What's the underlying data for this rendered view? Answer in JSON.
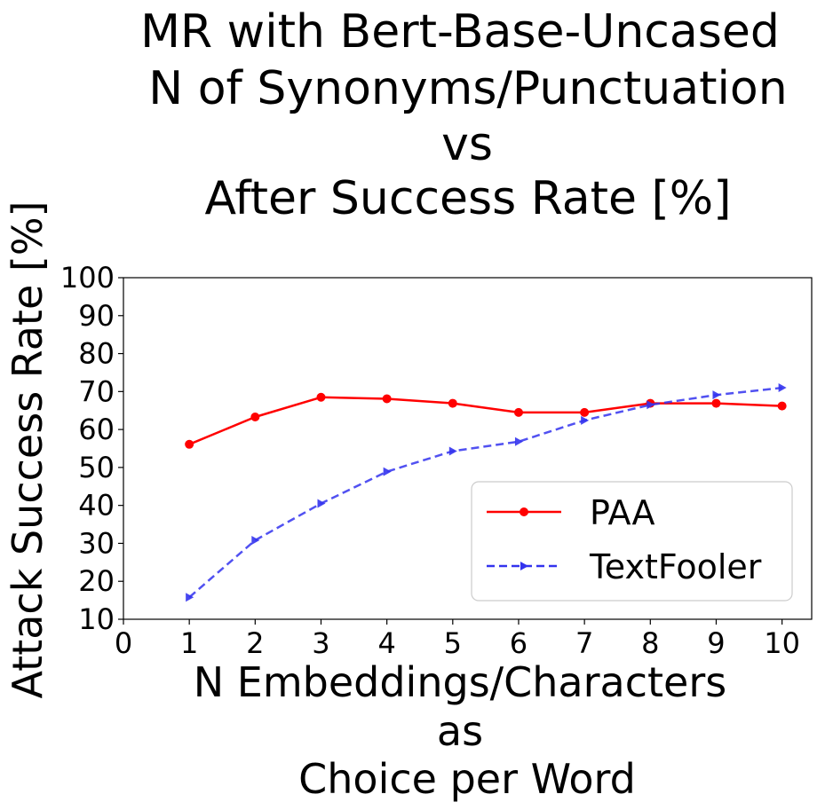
{
  "chart_data": {
    "type": "line",
    "title_lines": [
      "MR with Bert-Base-Uncased",
      "N of Synonyms/Punctuation",
      "vs",
      "After Success Rate [%]"
    ],
    "xlabel_lines": [
      "N Embeddings/Characters",
      "as",
      "Choice per Word"
    ],
    "ylabel": "Attack Success Rate [%]",
    "xlim": [
      0,
      10.45
    ],
    "ylim": [
      10,
      100
    ],
    "xticks": [
      "0",
      "1",
      "2",
      "3",
      "4",
      "5",
      "6",
      "7",
      "8",
      "9",
      "10"
    ],
    "yticks": [
      "10",
      "20",
      "30",
      "40",
      "50",
      "60",
      "70",
      "80",
      "90",
      "100"
    ],
    "grid": false,
    "legend_position": "lower-right",
    "x": [
      1,
      2,
      3,
      4,
      5,
      6,
      7,
      8,
      9,
      10
    ],
    "series": [
      {
        "name": "PAA",
        "color": "#ff0000",
        "marker": "circle",
        "line": "solid",
        "values": [
          56.1,
          63.3,
          68.5,
          68.1,
          66.9,
          64.5,
          64.5,
          66.9,
          66.9,
          66.2
        ]
      },
      {
        "name": "TextFooler",
        "color": "#3333ee",
        "marker": "triangle-right",
        "line": "dashed",
        "values": [
          15.8,
          30.8,
          40.5,
          48.9,
          54.3,
          56.8,
          62.4,
          66.5,
          69.1,
          71.0
        ]
      }
    ]
  }
}
